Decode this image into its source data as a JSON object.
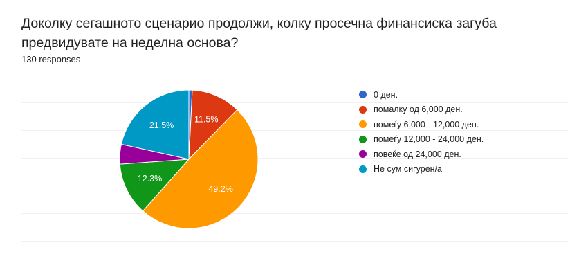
{
  "question": {
    "title": "Доколку сегашното сценарио продолжи, колку просечна финансиска загуба предвидувате на неделна основа?",
    "responses": "130 responses"
  },
  "chart_data": {
    "type": "pie",
    "labels": [
      "0 ден.",
      "помалку од 6,000 ден.",
      "помеѓу 6,000 - 12,000 ден.",
      "помеѓу 12,000 - 24,000 ден.",
      "повеќе од 24,000 ден.",
      "Не сум сигурен/а"
    ],
    "values": [
      0.8,
      11.5,
      49.2,
      12.3,
      4.6,
      21.5
    ],
    "data_labels": [
      "",
      "11.5%",
      "49.2%",
      "12.3%",
      "",
      "21.5%"
    ],
    "colors": [
      "#3366cc",
      "#dc3912",
      "#ff9900",
      "#109618",
      "#990099",
      "#0099c6"
    ],
    "start_angle_deg": 90,
    "direction": "clockwise",
    "legend_position": "right"
  }
}
